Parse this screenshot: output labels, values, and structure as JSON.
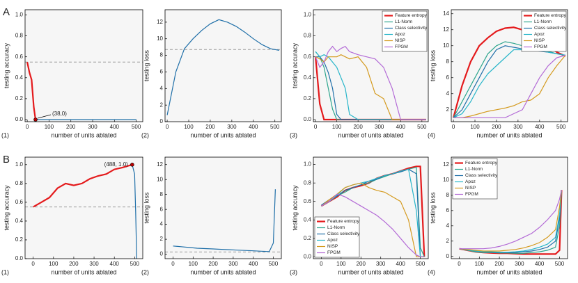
{
  "chart_data": [
    {
      "type": "line",
      "row_label": "A",
      "panel": "(1)",
      "xlabel": "number of units ablated",
      "ylabel": "testing accuracy",
      "xlim": [
        -10,
        530
      ],
      "xticks": [
        0,
        100,
        200,
        300,
        400,
        500
      ],
      "ylim": [
        -0.02,
        1.05
      ],
      "yticks": [
        {
          "value": 0,
          "label": "0.0"
        },
        {
          "value": 0.2,
          "label": "0.2"
        },
        {
          "value": 0.4,
          "label": "0.4"
        },
        {
          "value": 0.6,
          "label": "0.6"
        },
        {
          "value": 0.8,
          "label": "0.8"
        },
        {
          "value": 1,
          "label": "1.0"
        }
      ],
      "reference_line": 0.55,
      "x": [
        0,
        10,
        20,
        30,
        38,
        100,
        200,
        300,
        400,
        500
      ],
      "series": [
        {
          "color": "#e41a1c",
          "values": [
            0.55,
            0.45,
            0.38,
            0.12,
            0,
            null,
            null,
            null,
            null,
            null
          ]
        },
        {
          "color": "#1f6fa8",
          "values": [
            null,
            null,
            null,
            null,
            0,
            0,
            0,
            0,
            0,
            0
          ]
        }
      ],
      "annotations": [
        {
          "text": "(38,0)",
          "x": 38,
          "y": 0
        }
      ]
    },
    {
      "type": "line",
      "panel": "(2)",
      "xlabel": "number of units ablated",
      "ylabel": "testing loss",
      "xlim": [
        -10,
        530
      ],
      "xticks": [
        0,
        100,
        200,
        300,
        400,
        500
      ],
      "ylim": [
        0,
        13.5
      ],
      "yticks": [
        0,
        2,
        4,
        6,
        8,
        10,
        12
      ],
      "reference_line": 8.7,
      "x": [
        0,
        40,
        80,
        120,
        160,
        200,
        240,
        280,
        320,
        360,
        400,
        440,
        480,
        520
      ],
      "series": [
        {
          "color": "#1f6fa8",
          "values": [
            0.8,
            6,
            8.8,
            10,
            11,
            11.8,
            12.3,
            12,
            11.5,
            10.8,
            10,
            9.3,
            8.8,
            8.6
          ]
        }
      ]
    },
    {
      "type": "line",
      "panel": "(3)",
      "xlabel": "number of units ablated",
      "ylabel": "testing accuracy",
      "legend": "upper right",
      "xlim": [
        -10,
        530
      ],
      "xticks": [
        0,
        100,
        200,
        300,
        400,
        500
      ],
      "ylim": [
        -0.02,
        1.05
      ],
      "yticks": [
        {
          "value": 0,
          "label": "0.0"
        },
        {
          "value": 0.2,
          "label": "0.2"
        },
        {
          "value": 0.4,
          "label": "0.4"
        },
        {
          "value": 0.6,
          "label": "0.6"
        },
        {
          "value": 0.8,
          "label": "0.8"
        },
        {
          "value": 1,
          "label": "1.0"
        }
      ],
      "x": [
        0,
        20,
        40,
        60,
        80,
        100,
        120,
        140,
        160,
        200,
        240,
        280,
        320,
        360,
        400,
        440,
        480,
        520
      ],
      "series": [
        {
          "name": "Feature entropy",
          "color": "#e41a1c",
          "values": [
            0.6,
            0.15,
            0,
            0,
            0,
            0,
            0,
            0,
            0,
            0,
            0,
            0,
            0,
            0,
            0,
            0,
            0,
            0
          ]
        },
        {
          "name": "L1-Norm",
          "color": "#2ca58d",
          "values": [
            0.65,
            0.6,
            0.5,
            0.3,
            0.1,
            0,
            0,
            0,
            0,
            0,
            0,
            0,
            0,
            0,
            0,
            0,
            0,
            0
          ]
        },
        {
          "name": "Class selectivity",
          "color": "#1f6fa8",
          "values": [
            0.6,
            0.6,
            0.55,
            0.45,
            0.3,
            0.05,
            0,
            0,
            0,
            0,
            0,
            0,
            0,
            0,
            0,
            0,
            0,
            0
          ]
        },
        {
          "name": "Apoz",
          "color": "#26b5c9",
          "values": [
            0.65,
            0.6,
            0.62,
            0.6,
            0.55,
            0.5,
            0.4,
            0.3,
            0.05,
            0,
            0,
            0,
            0,
            0,
            0,
            0,
            0,
            0
          ]
        },
        {
          "name": "NISP",
          "color": "#d49a1e",
          "values": [
            0.6,
            0.58,
            0.55,
            0.6,
            0.6,
            0.6,
            0.62,
            0.6,
            0.58,
            0.6,
            0.5,
            0.25,
            0.2,
            0,
            0,
            0,
            0,
            0
          ]
        },
        {
          "name": "FPGM",
          "color": "#b36ad6",
          "values": [
            0.6,
            0.5,
            0.55,
            0.65,
            0.7,
            0.65,
            0.68,
            0.7,
            0.65,
            0.62,
            0.6,
            0.58,
            0.5,
            0.3,
            0,
            0,
            0,
            0
          ]
        }
      ]
    },
    {
      "type": "line",
      "panel": "(4)",
      "xlabel": "number of units ablated",
      "ylabel": "testing loss",
      "legend": "upper right",
      "xlim": [
        -10,
        530
      ],
      "xticks": [
        0,
        100,
        200,
        300,
        400,
        500
      ],
      "ylim": [
        0.5,
        14.5
      ],
      "yticks": [
        2,
        4,
        6,
        8,
        10,
        12,
        14
      ],
      "x": [
        0,
        40,
        80,
        120,
        160,
        200,
        240,
        280,
        320,
        360,
        400,
        440,
        480,
        520
      ],
      "series": [
        {
          "name": "Feature entropy",
          "color": "#e41a1c",
          "values": [
            1,
            5,
            8,
            10,
            11,
            11.8,
            12.2,
            12.3,
            12,
            11.5,
            10.8,
            10,
            9.2,
            8.7
          ]
        },
        {
          "name": "L1-Norm",
          "color": "#2ca58d",
          "values": [
            1,
            3,
            5,
            7,
            9,
            10,
            10.5,
            10.3,
            10,
            9.8,
            9.5,
            9.3,
            9,
            8.8
          ]
        },
        {
          "name": "Class selectivity",
          "color": "#1f6fa8",
          "values": [
            1,
            2,
            4,
            6,
            8,
            9.5,
            10,
            9.8,
            9.6,
            9.5,
            9.3,
            9.2,
            9,
            8.8
          ]
        },
        {
          "name": "Apoz",
          "color": "#26b5c9",
          "values": [
            1,
            1.5,
            3,
            5,
            6.5,
            7.5,
            8.5,
            9.5,
            9.5,
            9.6,
            9.4,
            9.2,
            9,
            8.8
          ]
        },
        {
          "name": "NISP",
          "color": "#d49a1e",
          "values": [
            1,
            1,
            1.2,
            1.5,
            1.8,
            2,
            2.2,
            2.5,
            3,
            3.2,
            4,
            6,
            7.5,
            8.8
          ]
        },
        {
          "name": "FPGM",
          "color": "#b36ad6",
          "values": [
            1,
            1,
            1,
            1,
            1,
            1,
            1,
            1.5,
            2,
            4,
            6,
            7.5,
            8.5,
            8.8
          ]
        }
      ]
    },
    {
      "type": "line",
      "row_label": "B",
      "panel": "(1)",
      "xlabel": "number of units ablated",
      "ylabel": "testing accuracy",
      "xlim": [
        -40,
        540
      ],
      "xticks": [
        0,
        100,
        200,
        300,
        400,
        500
      ],
      "ylim": [
        0,
        1.08
      ],
      "yticks": [
        {
          "value": 0,
          "label": "0.0"
        },
        {
          "value": 0.2,
          "label": "0.2"
        },
        {
          "value": 0.4,
          "label": "0.4"
        },
        {
          "value": 0.6,
          "label": "0.6"
        },
        {
          "value": 0.8,
          "label": "0.8"
        },
        {
          "value": 1,
          "label": "1.0"
        }
      ],
      "reference_line": 0.55,
      "x": [
        0,
        40,
        80,
        120,
        160,
        200,
        240,
        280,
        320,
        360,
        400,
        440,
        488,
        500,
        505,
        510
      ],
      "series": [
        {
          "color": "#e41a1c",
          "values": [
            0.55,
            0.6,
            0.65,
            0.75,
            0.8,
            0.78,
            0.8,
            0.85,
            0.88,
            0.9,
            0.95,
            0.97,
            1.0,
            null,
            null,
            null
          ]
        },
        {
          "color": "#1f6fa8",
          "values": [
            null,
            null,
            null,
            null,
            null,
            null,
            null,
            null,
            null,
            null,
            null,
            null,
            1.0,
            0.9,
            0.5,
            0
          ]
        }
      ],
      "annotations": [
        {
          "text": "(488, 1.0)",
          "x": 488,
          "y": 1.0
        }
      ]
    },
    {
      "type": "line",
      "panel": "(2)",
      "xlabel": "number of units ablated",
      "ylabel": "testing loss",
      "xlim": [
        -40,
        540
      ],
      "xticks": [
        0,
        100,
        200,
        300,
        400,
        500
      ],
      "ylim": [
        -0.6,
        13
      ],
      "yticks": [
        0,
        2,
        4,
        6,
        8,
        10,
        12
      ],
      "reference_line": 0.3,
      "x": [
        0,
        40,
        80,
        120,
        160,
        200,
        240,
        280,
        320,
        360,
        400,
        440,
        480,
        500,
        510
      ],
      "series": [
        {
          "color": "#1f6fa8",
          "values": [
            1.1,
            1.0,
            0.9,
            0.8,
            0.75,
            0.7,
            0.65,
            0.6,
            0.55,
            0.5,
            0.45,
            0.4,
            0.35,
            1.5,
            8.7
          ]
        }
      ]
    },
    {
      "type": "line",
      "panel": "(3)",
      "xlabel": "number of units ablated",
      "ylabel": "testing accuracy",
      "legend": "lower left",
      "xlim": [
        -40,
        540
      ],
      "xticks": [
        0,
        100,
        200,
        300,
        400,
        500
      ],
      "ylim": [
        -0.02,
        1.08
      ],
      "yticks": [
        {
          "value": 0,
          "label": "0.0"
        },
        {
          "value": 0.2,
          "label": "0.2"
        },
        {
          "value": 0.4,
          "label": "0.4"
        },
        {
          "value": 0.6,
          "label": "0.6"
        },
        {
          "value": 0.8,
          "label": "0.8"
        },
        {
          "value": 1,
          "label": "1.0"
        }
      ],
      "x": [
        0,
        40,
        80,
        120,
        160,
        200,
        240,
        280,
        320,
        360,
        400,
        440,
        480,
        500,
        520
      ],
      "series": [
        {
          "name": "Feature entropy",
          "color": "#e41a1c",
          "values": [
            0.55,
            0.6,
            0.65,
            0.72,
            0.75,
            0.77,
            0.8,
            0.85,
            0.88,
            0.9,
            0.93,
            0.96,
            0.98,
            0.98,
            0
          ]
        },
        {
          "name": "L1-Norm",
          "color": "#2ca58d",
          "values": [
            0.55,
            0.6,
            0.66,
            0.7,
            0.75,
            0.78,
            0.8,
            0.84,
            0.87,
            0.9,
            0.92,
            0.95,
            0.97,
            0.1,
            0
          ]
        },
        {
          "name": "Class selectivity",
          "color": "#1f6fa8",
          "values": [
            0.56,
            0.62,
            0.66,
            0.72,
            0.75,
            0.78,
            0.82,
            0.84,
            0.88,
            0.9,
            0.92,
            0.95,
            0.9,
            0,
            0
          ]
        },
        {
          "name": "Apoz",
          "color": "#26b5c9",
          "values": [
            0.55,
            0.6,
            0.67,
            0.75,
            0.78,
            0.8,
            0.82,
            0.85,
            0.88,
            0.9,
            0.93,
            0.95,
            0.5,
            0,
            0
          ]
        },
        {
          "name": "NISP",
          "color": "#d49a1e",
          "values": [
            0.55,
            0.62,
            0.68,
            0.75,
            0.78,
            0.8,
            0.75,
            0.72,
            0.7,
            0.65,
            0.6,
            0.4,
            0,
            0,
            0
          ]
        },
        {
          "name": "FPGM",
          "color": "#b36ad6",
          "values": [
            0.55,
            0.6,
            0.68,
            0.65,
            0.6,
            0.55,
            0.5,
            0.45,
            0.38,
            0.3,
            0.2,
            0.1,
            0.02,
            0,
            0
          ]
        }
      ]
    },
    {
      "type": "line",
      "panel": "(4)",
      "xlabel": "number of units ablated",
      "ylabel": "testing loss",
      "legend": "upper left",
      "xlim": [
        -40,
        540
      ],
      "xticks": [
        0,
        100,
        200,
        300,
        400,
        500
      ],
      "ylim": [
        -0.3,
        13
      ],
      "yticks": [
        0,
        2,
        4,
        6,
        8,
        10,
        12
      ],
      "x": [
        0,
        40,
        80,
        120,
        160,
        200,
        240,
        280,
        320,
        360,
        400,
        440,
        480,
        500,
        510
      ],
      "series": [
        {
          "name": "Feature entropy",
          "color": "#e41a1c",
          "values": [
            1,
            0.8,
            0.6,
            0.5,
            0.45,
            0.4,
            0.4,
            0.35,
            0.3,
            0.3,
            0.3,
            0.3,
            0.3,
            0.8,
            8.7
          ]
        },
        {
          "name": "L1-Norm",
          "color": "#2ca58d",
          "values": [
            1,
            0.8,
            0.6,
            0.5,
            0.5,
            0.45,
            0.45,
            0.4,
            0.4,
            0.5,
            0.6,
            0.8,
            1.2,
            4,
            8.7
          ]
        },
        {
          "name": "Class selectivity",
          "color": "#1f6fa8",
          "values": [
            1,
            0.85,
            0.7,
            0.6,
            0.55,
            0.5,
            0.5,
            0.5,
            0.6,
            0.7,
            0.9,
            1.2,
            2,
            5,
            8.7
          ]
        },
        {
          "name": "Apoz",
          "color": "#26b5c9",
          "values": [
            1,
            0.85,
            0.7,
            0.6,
            0.6,
            0.55,
            0.55,
            0.6,
            0.7,
            0.9,
            1.2,
            1.6,
            2.5,
            5.5,
            8.7
          ]
        },
        {
          "name": "NISP",
          "color": "#d49a1e",
          "values": [
            1,
            0.9,
            0.8,
            0.7,
            0.7,
            0.7,
            0.8,
            0.9,
            1.1,
            1.4,
            1.8,
            2.5,
            3.5,
            6.5,
            8.7
          ]
        },
        {
          "name": "FPGM",
          "color": "#b36ad6",
          "values": [
            1,
            1,
            1,
            1,
            1.1,
            1.3,
            1.6,
            2,
            2.5,
            3,
            3.8,
            4.8,
            6,
            7.5,
            8.7
          ]
        }
      ]
    }
  ]
}
